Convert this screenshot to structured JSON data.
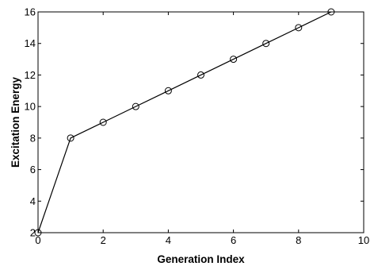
{
  "chart_data": {
    "type": "line",
    "title": "",
    "xlabel": "Generation Index",
    "ylabel": "Excitation Energy",
    "xlim": [
      0,
      10
    ],
    "ylim": [
      2,
      16
    ],
    "xticks": [
      0,
      2,
      4,
      6,
      8,
      10
    ],
    "yticks": [
      2,
      4,
      6,
      8,
      10,
      12,
      14,
      16
    ],
    "grid": false,
    "legend": "none",
    "marker": "open-circle",
    "line_color": "#000000",
    "series": [
      {
        "x": [
          0,
          1,
          2,
          3,
          4,
          5,
          6,
          7,
          8,
          9
        ],
        "values": [
          2,
          8,
          9,
          10,
          11,
          12,
          13,
          14,
          15,
          16
        ]
      }
    ]
  }
}
